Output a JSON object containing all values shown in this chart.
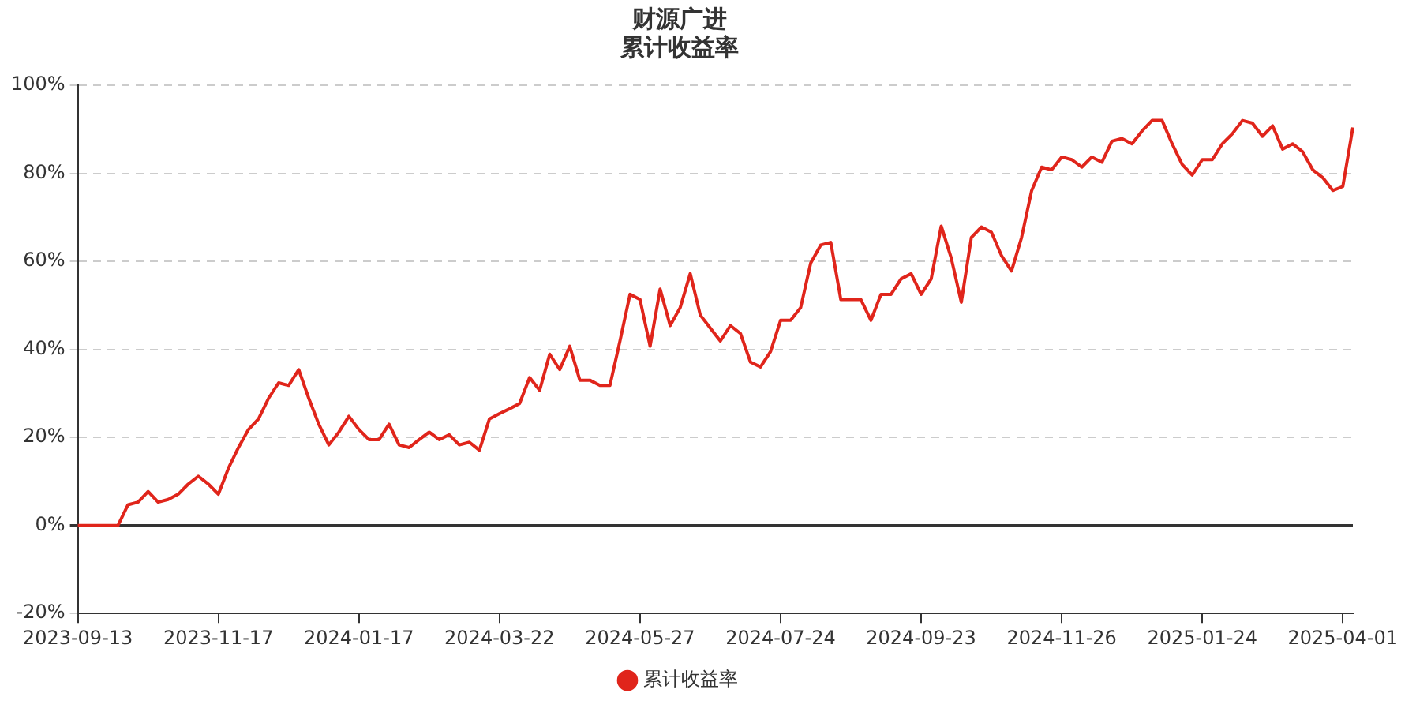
{
  "chart_data": {
    "type": "line",
    "title": "财源广进",
    "subtitle": "累计收益率",
    "categories": [
      "2023-09-13",
      null,
      null,
      null,
      null,
      null,
      null,
      null,
      null,
      null,
      null,
      null,
      null,
      null,
      "2023-11-17",
      null,
      null,
      null,
      null,
      null,
      null,
      null,
      null,
      null,
      null,
      null,
      null,
      null,
      "2024-01-17",
      null,
      null,
      null,
      null,
      null,
      null,
      null,
      null,
      null,
      null,
      null,
      null,
      null,
      "2024-03-22",
      null,
      null,
      null,
      null,
      null,
      null,
      null,
      null,
      null,
      null,
      null,
      null,
      null,
      "2024-05-27",
      null,
      null,
      null,
      null,
      null,
      null,
      null,
      null,
      null,
      null,
      null,
      null,
      null,
      "2024-07-24",
      null,
      null,
      null,
      null,
      null,
      null,
      null,
      null,
      null,
      null,
      null,
      null,
      null,
      "2024-09-23",
      null,
      null,
      null,
      null,
      null,
      null,
      null,
      null,
      null,
      null,
      null,
      null,
      null,
      "2024-11-26",
      null,
      null,
      null,
      null,
      null,
      null,
      null,
      null,
      null,
      null,
      null,
      null,
      null,
      "2025-01-24",
      null,
      null,
      null,
      null,
      null,
      null,
      null,
      null,
      null,
      null,
      null,
      null,
      null,
      "2025-04-01",
      null
    ],
    "series": [
      {
        "name": "累计收益率",
        "color": "#e0251b",
        "values": [
          0,
          0,
          0,
          0,
          0,
          4.7,
          5.3,
          7.7,
          5.3,
          5.9,
          7.1,
          9.4,
          11.2,
          9.4,
          7.1,
          13,
          17.7,
          21.8,
          24.2,
          28.9,
          32.4,
          31.8,
          35.4,
          28.9,
          23,
          18.3,
          21.2,
          24.8,
          21.8,
          19.5,
          19.5,
          23,
          18.3,
          17.7,
          19.5,
          21.2,
          19.5,
          20.6,
          18.3,
          18.9,
          17.1,
          24.2,
          25.4,
          26.5,
          27.7,
          33.6,
          30.7,
          38.9,
          35.4,
          40.7,
          33,
          33,
          31.8,
          31.8,
          41.9,
          52.5,
          51.3,
          40.7,
          53.7,
          45.4,
          49.5,
          57.2,
          47.8,
          44.8,
          41.9,
          45.4,
          43.6,
          37.1,
          36,
          39.5,
          46.6,
          46.6,
          49.5,
          59.6,
          63.7,
          64.3,
          51.3,
          51.3,
          51.3,
          46.6,
          52.5,
          52.5,
          56,
          57.2,
          52.5,
          56,
          68,
          60.7,
          50.7,
          65.4,
          67.8,
          66.6,
          61.3,
          57.8,
          65.4,
          76,
          81.4,
          80.8,
          83.7,
          83.1,
          81.4,
          83.7,
          82.5,
          87.3,
          87.9,
          86.7,
          89.6,
          92,
          92,
          86.7,
          82,
          79.6,
          83.1,
          83.1,
          86.7,
          89,
          92,
          91.4,
          88.4,
          90.8,
          85.5,
          86.7,
          84.9,
          80.8,
          79,
          76.1,
          77,
          90.4
        ]
      }
    ],
    "ylim": [
      -20,
      100
    ],
    "yticks": [
      {
        "value": -20,
        "label": "-20%"
      },
      {
        "value": 0,
        "label": "0%"
      },
      {
        "value": 20,
        "label": "20%"
      },
      {
        "value": 40,
        "label": "40%"
      },
      {
        "value": 60,
        "label": "60%"
      },
      {
        "value": 80,
        "label": "80%"
      },
      {
        "value": 100,
        "label": "100%"
      }
    ],
    "grid": "y",
    "legend": "bottom",
    "marker": "none",
    "line_style": "solid"
  }
}
